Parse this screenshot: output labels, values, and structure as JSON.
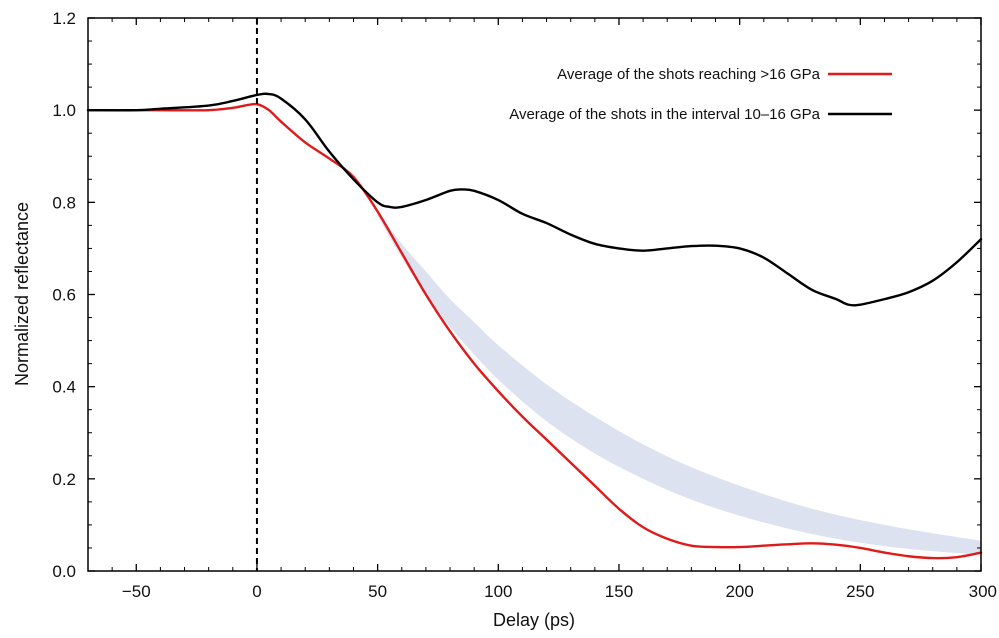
{
  "chart_data": {
    "type": "line",
    "title": "",
    "xlabel": "Delay (ps)",
    "ylabel": "Normalized reflectance",
    "xlim": [
      -70,
      300
    ],
    "ylim": [
      0,
      1.2
    ],
    "x_ticks": [
      -50,
      0,
      50,
      100,
      150,
      200,
      250,
      300
    ],
    "x_tick_labels": [
      "−50",
      "0",
      "50",
      "100",
      "150",
      "200",
      "250",
      "300"
    ],
    "y_ticks": [
      0,
      0.2,
      0.4,
      0.6,
      0.8,
      1.0,
      1.2
    ],
    "y_tick_labels": [
      "0.0",
      "0.2",
      "0.4",
      "0.6",
      "0.8",
      "1.0",
      "1.2"
    ],
    "vline": {
      "x": 0,
      "style": "dashed",
      "color": "#000000"
    },
    "legend_position": "top-right",
    "series": [
      {
        "name": "Average of the shots reaching >16 GPa",
        "color": "#e0191b",
        "x": [
          -70,
          -50,
          -40,
          -20,
          -10,
          -5,
          0,
          5,
          10,
          20,
          30,
          40,
          50,
          60,
          70,
          80,
          90,
          100,
          110,
          120,
          130,
          140,
          150,
          160,
          170,
          180,
          190,
          200,
          210,
          220,
          230,
          240,
          250,
          260,
          270,
          280,
          290,
          300
        ],
        "y": [
          1.0,
          1.0,
          1.0,
          1.0,
          1.005,
          1.01,
          1.013,
          1.0,
          0.975,
          0.93,
          0.895,
          0.855,
          0.78,
          0.69,
          0.6,
          0.52,
          0.45,
          0.39,
          0.335,
          0.285,
          0.235,
          0.185,
          0.135,
          0.095,
          0.07,
          0.055,
          0.052,
          0.052,
          0.055,
          0.058,
          0.06,
          0.057,
          0.05,
          0.04,
          0.032,
          0.028,
          0.03,
          0.04
        ]
      },
      {
        "name": "Average of the shots in the interval 10–16 GPa",
        "color": "#000000",
        "x": [
          -70,
          -50,
          -40,
          -20,
          -10,
          0,
          5,
          10,
          20,
          30,
          40,
          50,
          55,
          60,
          70,
          80,
          85,
          90,
          100,
          110,
          120,
          130,
          140,
          150,
          160,
          170,
          180,
          190,
          200,
          210,
          220,
          230,
          240,
          245,
          250,
          260,
          270,
          280,
          290,
          300
        ],
        "y": [
          1.0,
          1.0,
          1.003,
          1.01,
          1.02,
          1.033,
          1.035,
          1.025,
          0.98,
          0.91,
          0.85,
          0.8,
          0.79,
          0.79,
          0.805,
          0.825,
          0.828,
          0.825,
          0.805,
          0.775,
          0.755,
          0.73,
          0.71,
          0.7,
          0.695,
          0.7,
          0.705,
          0.706,
          0.7,
          0.68,
          0.645,
          0.61,
          0.59,
          0.578,
          0.578,
          0.59,
          0.605,
          0.63,
          0.67,
          0.72
        ]
      }
    ],
    "band": {
      "name": "shaded model band",
      "color": "#dde2f0",
      "x": [
        50,
        60,
        70,
        80,
        90,
        100,
        120,
        140,
        160,
        180,
        200,
        220,
        240,
        260,
        280,
        300
      ],
      "upper": [
        0.78,
        0.71,
        0.65,
        0.59,
        0.54,
        0.49,
        0.405,
        0.335,
        0.275,
        0.225,
        0.185,
        0.15,
        0.122,
        0.1,
        0.082,
        0.066
      ],
      "lower": [
        0.77,
        0.68,
        0.6,
        0.53,
        0.47,
        0.415,
        0.325,
        0.255,
        0.2,
        0.155,
        0.12,
        0.092,
        0.07,
        0.054,
        0.043,
        0.035
      ]
    }
  }
}
